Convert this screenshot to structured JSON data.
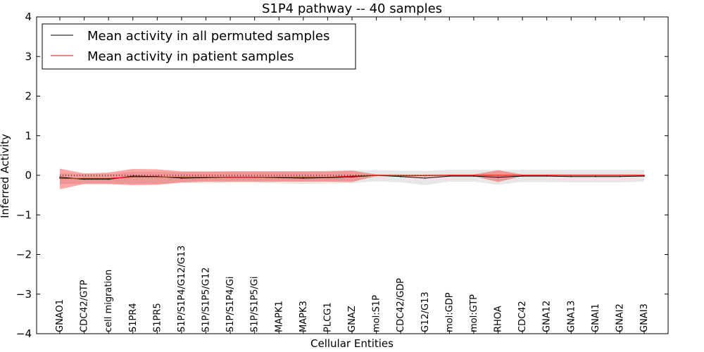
{
  "chart_data": {
    "type": "line",
    "title": "S1P4 pathway -- 40 samples",
    "xlabel": "Cellular Entities",
    "ylabel": "Inferred Activity",
    "ylim": [
      -4,
      4
    ],
    "yticks": [
      -4,
      -3,
      -2,
      -1,
      0,
      1,
      2,
      3,
      4
    ],
    "ytick_labels": [
      "−4",
      "−3",
      "−2",
      "−1",
      "0",
      "1",
      "2",
      "3",
      "4"
    ],
    "categories": [
      "GNAO1",
      "CDC42/GTP",
      "cell migration",
      "S1PR4",
      "S1PR5",
      "S1P/S1P4/G12/G13",
      "S1P/S1P5/G12",
      "S1P/S1P4/Gi",
      "S1P/S1P5/Gi",
      "MAPK1",
      "MAPK3",
      "PLCG1",
      "GNAZ",
      "mol:S1P",
      "CDC42/GDP",
      "G12/G13",
      "mol:GDP",
      "mol:GTP",
      "RHOA",
      "CDC42",
      "GNA12",
      "GNA13",
      "GNAI1",
      "GNAI2",
      "GNAI3"
    ],
    "legend_position": "top-left",
    "series": [
      {
        "name": "Mean activity in all permuted samples",
        "color": "#000000",
        "band_color": "#bbbbbb",
        "values": [
          -0.05,
          -0.1,
          -0.1,
          -0.02,
          -0.03,
          -0.07,
          -0.06,
          -0.05,
          -0.05,
          -0.06,
          -0.07,
          -0.06,
          -0.04,
          0.0,
          -0.03,
          -0.07,
          -0.02,
          -0.02,
          -0.05,
          -0.02,
          -0.02,
          -0.03,
          -0.03,
          -0.03,
          -0.02
        ],
        "lower": [
          -0.22,
          -0.22,
          -0.22,
          -0.22,
          -0.22,
          -0.2,
          -0.2,
          -0.19,
          -0.19,
          -0.2,
          -0.22,
          -0.2,
          -0.2,
          -0.15,
          -0.18,
          -0.25,
          -0.16,
          -0.16,
          -0.24,
          -0.17,
          -0.17,
          -0.18,
          -0.18,
          -0.18,
          -0.16
        ],
        "upper": [
          0.06,
          0.03,
          0.03,
          0.09,
          0.09,
          0.08,
          0.09,
          0.1,
          0.1,
          0.1,
          0.1,
          0.11,
          0.13,
          0.13,
          0.12,
          0.11,
          0.14,
          0.14,
          0.13,
          0.14,
          0.14,
          0.14,
          0.14,
          0.14,
          0.14
        ]
      },
      {
        "name": "Mean activity in patient samples",
        "color": "#ff0000",
        "band_color": "#ff0000",
        "values": [
          -0.08,
          -0.08,
          -0.08,
          -0.04,
          -0.04,
          -0.05,
          -0.05,
          -0.05,
          -0.05,
          -0.05,
          -0.05,
          -0.05,
          -0.02,
          0.0,
          -0.01,
          -0.01,
          0.0,
          0.0,
          0.0,
          0.0,
          0.0,
          0.0,
          0.0,
          0.0,
          0.0
        ],
        "lower": [
          -0.35,
          -0.22,
          -0.22,
          -0.25,
          -0.24,
          -0.18,
          -0.16,
          -0.16,
          -0.16,
          -0.16,
          -0.16,
          -0.16,
          -0.17,
          -0.02,
          -0.03,
          -0.03,
          -0.02,
          -0.02,
          -0.17,
          -0.02,
          -0.02,
          -0.02,
          -0.02,
          -0.02,
          -0.02
        ],
        "upper": [
          0.17,
          0.05,
          0.07,
          0.16,
          0.15,
          0.1,
          0.1,
          0.1,
          0.1,
          0.1,
          0.1,
          0.1,
          0.12,
          0.02,
          0.02,
          0.02,
          0.02,
          0.02,
          0.13,
          0.02,
          0.02,
          0.02,
          0.02,
          0.02,
          0.02
        ]
      }
    ],
    "reference_line": {
      "y": 0,
      "style": "dotted",
      "color": "#000000"
    }
  }
}
